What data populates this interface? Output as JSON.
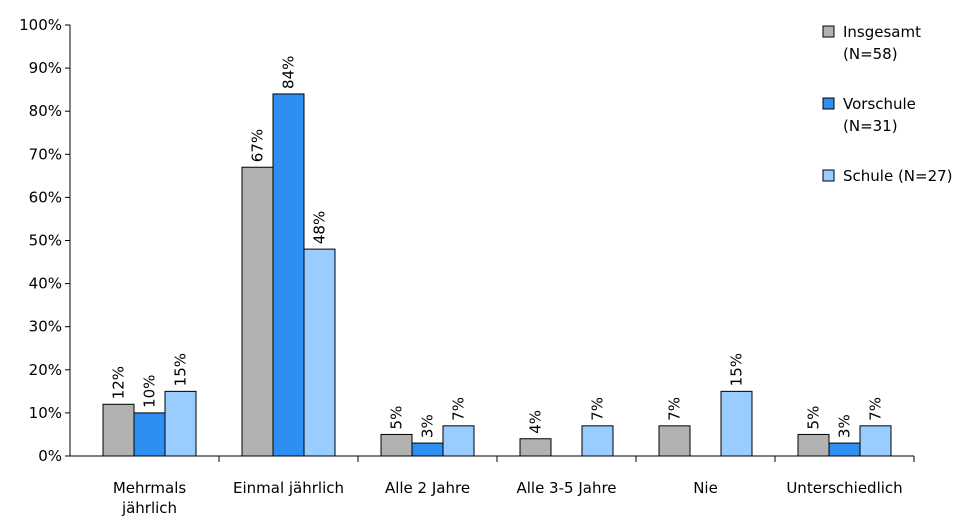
{
  "chart_data": {
    "type": "bar",
    "categories": [
      "Mehrmals jährlich",
      "Einmal jährlich",
      "Alle 2 Jahre",
      "Alle 3-5 Jahre",
      "Nie",
      "Unterschiedlich"
    ],
    "series": [
      {
        "name": "Insgesamt (N=58)",
        "color": "#b2b2b2",
        "values": [
          12,
          67,
          5,
          4,
          7,
          5
        ],
        "value_labels": [
          "12%",
          "67%",
          "5%",
          "4%",
          "7%",
          "5%"
        ]
      },
      {
        "name": "Vorschule (N=31)",
        "color": "#2e8ff2",
        "values": [
          10,
          84,
          3,
          null,
          null,
          3
        ],
        "value_labels": [
          "10%",
          "84%",
          "3%",
          null,
          null,
          "3%"
        ]
      },
      {
        "name": "Schule (N=27)",
        "color": "#99ccff",
        "values": [
          15,
          48,
          7,
          7,
          15,
          7
        ],
        "value_labels": [
          "15%",
          "48%",
          "7%",
          "7%",
          "15%",
          "7%"
        ]
      }
    ],
    "ylim": [
      0,
      100
    ],
    "yticks": [
      {
        "value": 0,
        "label": "0%"
      },
      {
        "value": 10,
        "label": "10%"
      },
      {
        "value": 20,
        "label": "20%"
      },
      {
        "value": 30,
        "label": "30%"
      },
      {
        "value": 40,
        "label": "40%"
      },
      {
        "value": 50,
        "label": "50%"
      },
      {
        "value": 60,
        "label": "60%"
      },
      {
        "value": 70,
        "label": "70%"
      },
      {
        "value": 80,
        "label": "80%"
      },
      {
        "value": 90,
        "label": "90%"
      },
      {
        "value": 100,
        "label": "100%"
      }
    ],
    "grid": false,
    "legend": "right"
  }
}
